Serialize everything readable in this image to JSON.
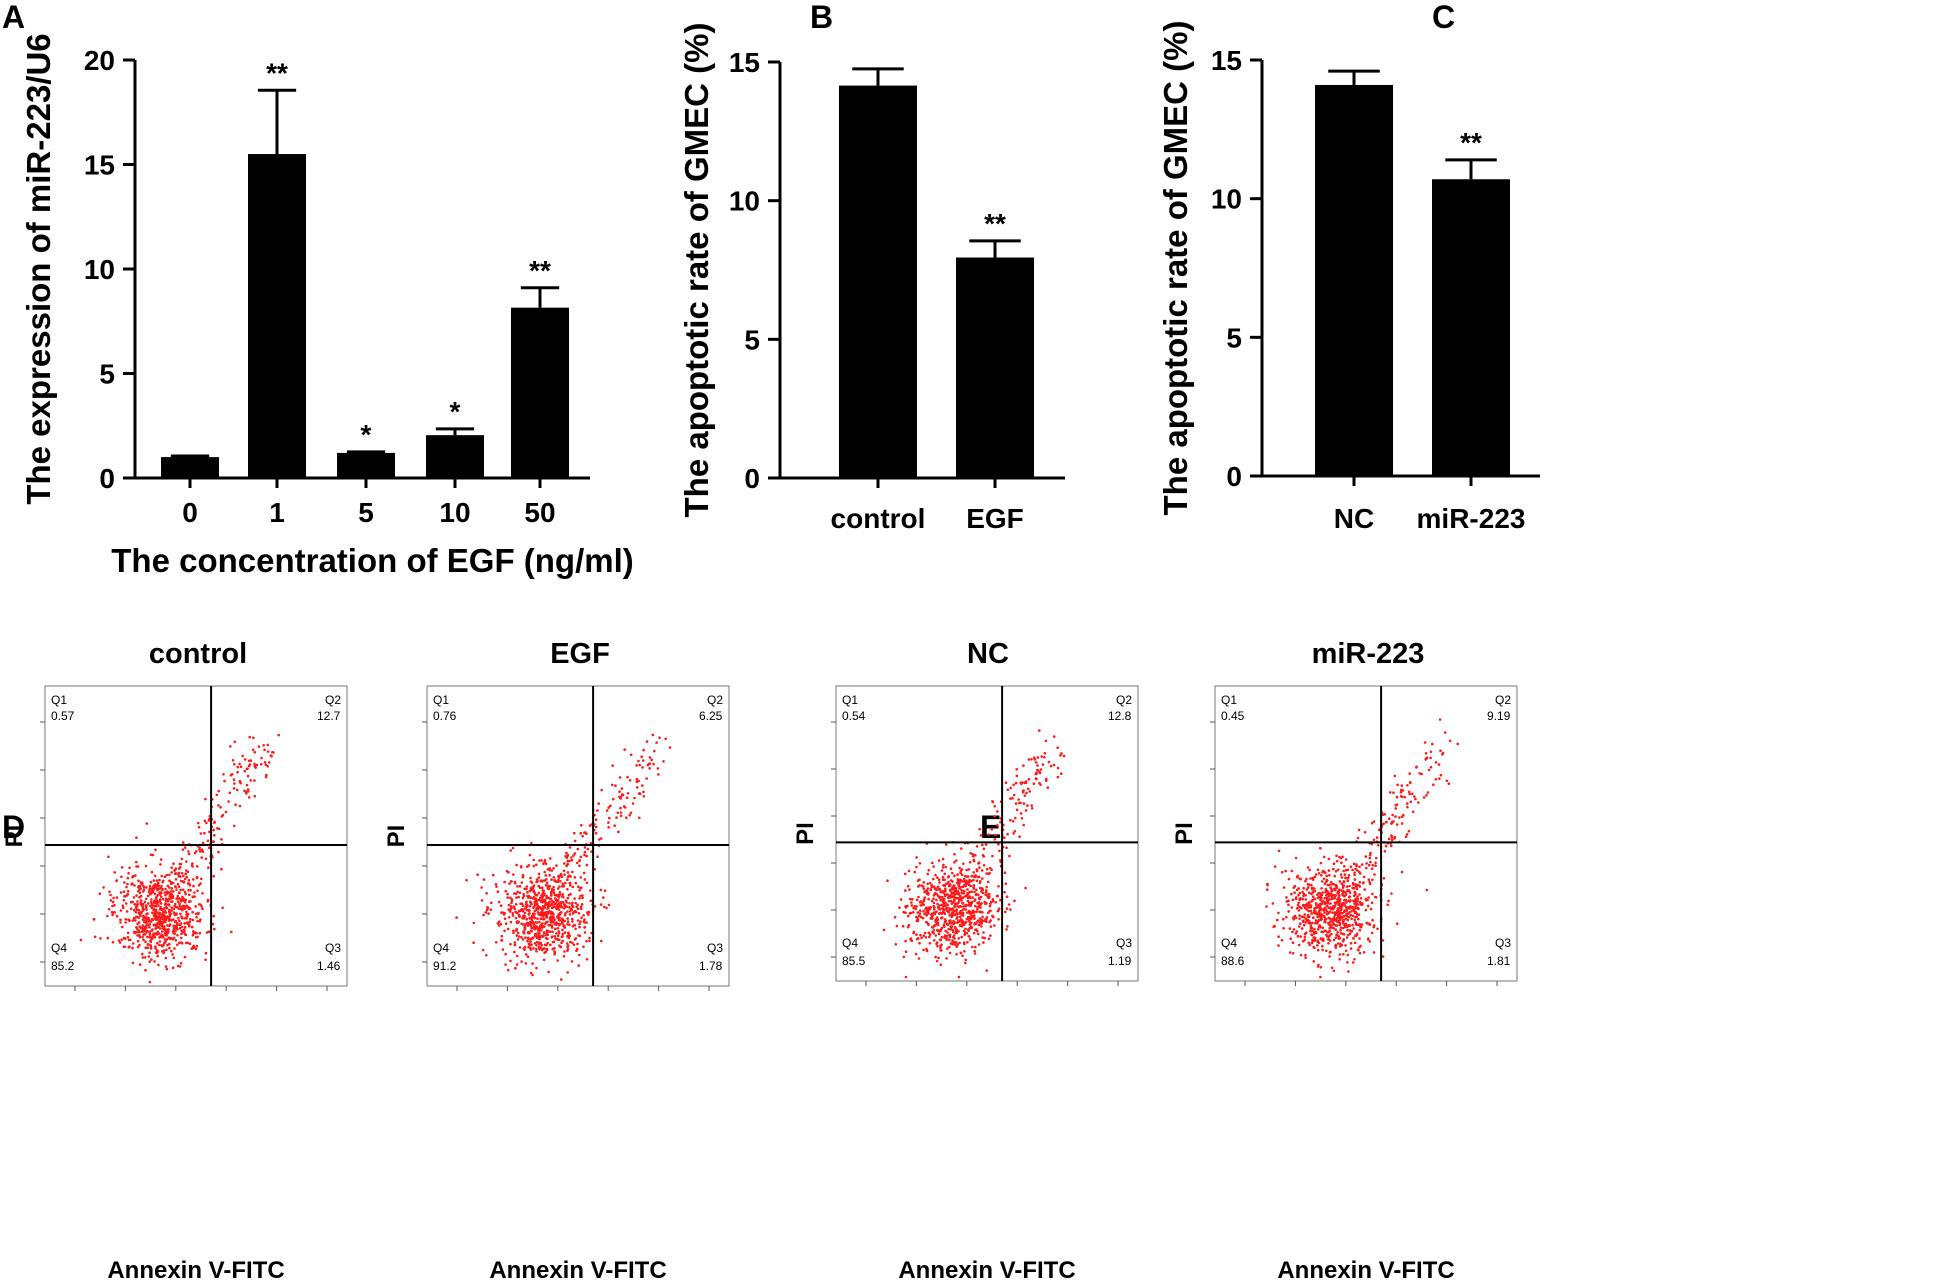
{
  "figure": {
    "panel_letters": [
      "A",
      "B",
      "C",
      "D",
      "E"
    ],
    "colors": {
      "bar": "#000000",
      "dots": "#ff1a1a",
      "axis": "#000000"
    }
  },
  "chart_data": [
    {
      "panel": "A",
      "type": "bar",
      "title": "",
      "xlabel": "The concentration of EGF (ng/ml)",
      "ylabel": "The expression of miR-223/U6",
      "categories": [
        "0",
        "1",
        "5",
        "10",
        "50"
      ],
      "values": [
        1.0,
        15.5,
        1.2,
        2.05,
        8.15
      ],
      "errors": [
        0.05,
        3.05,
        0.05,
        0.3,
        0.95
      ],
      "significance": [
        "",
        "**",
        "*",
        "*",
        "**"
      ],
      "ylim": [
        0,
        20
      ],
      "yticks": [
        "0",
        "5",
        "10",
        "15",
        "20"
      ]
    },
    {
      "panel": "B",
      "type": "bar",
      "title": "",
      "xlabel": "",
      "ylabel": "The apoptotic rate of GMEC (%)",
      "categories": [
        "control",
        "EGF"
      ],
      "values": [
        14.15,
        7.95
      ],
      "errors": [
        0.6,
        0.6
      ],
      "significance": [
        "",
        "**"
      ],
      "ylim": [
        0,
        15
      ],
      "yticks": [
        "0",
        "5",
        "10",
        "15"
      ]
    },
    {
      "panel": "C",
      "type": "bar",
      "title": "",
      "xlabel": "",
      "ylabel": "The apoptotic rate of GMEC (%)",
      "categories": [
        "NC",
        "miR-223"
      ],
      "values": [
        14.1,
        10.7
      ],
      "errors": [
        0.5,
        0.7
      ],
      "significance": [
        "",
        "**"
      ],
      "ylim": [
        0,
        15
      ],
      "yticks": [
        "0",
        "5",
        "10",
        "15"
      ]
    },
    {
      "panel": "D",
      "type": "scatter",
      "title": "control",
      "xlabel": "Annexin V-FITC",
      "ylabel": "PI",
      "quadrants": {
        "Q1": "0.57",
        "Q2": "12.7",
        "Q3": "1.46",
        "Q4": "85.2"
      }
    },
    {
      "panel": "D",
      "type": "scatter",
      "title": "EGF",
      "xlabel": "Annexin V-FITC",
      "ylabel": "PI",
      "quadrants": {
        "Q1": "0.76",
        "Q2": "6.25",
        "Q3": "1.78",
        "Q4": "91.2"
      }
    },
    {
      "panel": "E",
      "type": "scatter",
      "title": "NC",
      "xlabel": "Annexin V-FITC",
      "ylabel": "PI",
      "quadrants": {
        "Q1": "0.54",
        "Q2": "12.8",
        "Q3": "1.19",
        "Q4": "85.5"
      }
    },
    {
      "panel": "E",
      "type": "scatter",
      "title": "miR-223",
      "xlabel": "Annexin V-FITC",
      "ylabel": "PI",
      "quadrants": {
        "Q1": "0.45",
        "Q2": "9.19",
        "Q3": "1.81",
        "Q4": "88.6"
      }
    }
  ]
}
